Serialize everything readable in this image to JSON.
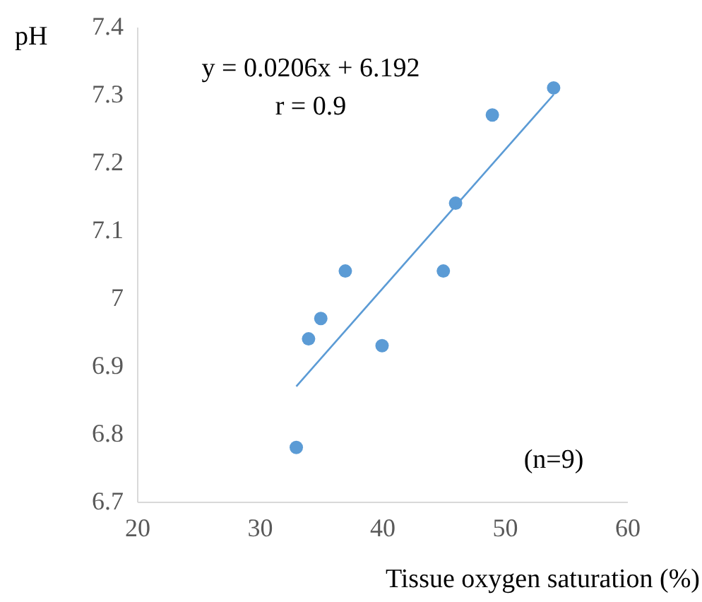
{
  "chart_data": {
    "type": "scatter",
    "xlabel": "Tissue oxygen saturation (%)",
    "ylabel": "pH",
    "xlim": [
      20,
      60
    ],
    "xticks": [
      20,
      30,
      40,
      50,
      60
    ],
    "ylim": [
      6.7,
      7.4
    ],
    "yticks": [
      6.7,
      6.8,
      6.9,
      7,
      7.1,
      7.2,
      7.3,
      7.4
    ],
    "marker": "circle",
    "series": [
      {
        "color": "#5b9bd5",
        "x": [
          33,
          34,
          35,
          37,
          40,
          45,
          46,
          49,
          54
        ],
        "values": [
          6.78,
          6.94,
          6.97,
          7.04,
          6.93,
          7.04,
          7.14,
          7.27,
          7.31
        ]
      },
      {
        "type": "line",
        "marker": "none",
        "color": "#5b9bd5",
        "x": [
          33,
          54
        ],
        "values": [
          6.87,
          7.3
        ]
      }
    ],
    "annotations": [
      "y = 0.0206x + 6.192",
      "r = 0.9",
      "(n=9)"
    ]
  }
}
